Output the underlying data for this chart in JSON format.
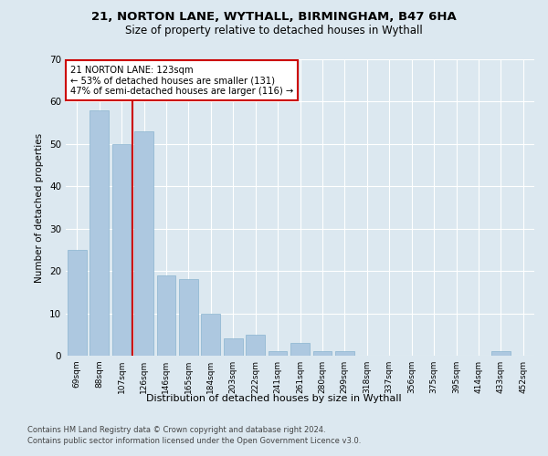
{
  "title1": "21, NORTON LANE, WYTHALL, BIRMINGHAM, B47 6HA",
  "title2": "Size of property relative to detached houses in Wythall",
  "xlabel": "Distribution of detached houses by size in Wythall",
  "ylabel": "Number of detached properties",
  "categories": [
    "69sqm",
    "88sqm",
    "107sqm",
    "126sqm",
    "146sqm",
    "165sqm",
    "184sqm",
    "203sqm",
    "222sqm",
    "241sqm",
    "261sqm",
    "280sqm",
    "299sqm",
    "318sqm",
    "337sqm",
    "356sqm",
    "375sqm",
    "395sqm",
    "414sqm",
    "433sqm",
    "452sqm"
  ],
  "values": [
    25,
    58,
    50,
    53,
    19,
    18,
    10,
    4,
    5,
    1,
    3,
    1,
    1,
    0,
    0,
    0,
    0,
    0,
    0,
    1,
    0
  ],
  "bar_color": "#adc8e0",
  "bar_edge_color": "#8ab4d0",
  "vline_x": 2.5,
  "vline_color": "#cc0000",
  "annotation_box_text": "21 NORTON LANE: 123sqm\n← 53% of detached houses are smaller (131)\n47% of semi-detached houses are larger (116) →",
  "annotation_box_color": "#ffffff",
  "annotation_box_edge_color": "#cc0000",
  "ylim": [
    0,
    70
  ],
  "yticks": [
    0,
    10,
    20,
    30,
    40,
    50,
    60,
    70
  ],
  "footer1": "Contains HM Land Registry data © Crown copyright and database right 2024.",
  "footer2": "Contains public sector information licensed under the Open Government Licence v3.0.",
  "background_color": "#dce8f0",
  "plot_background_color": "#dce8f0",
  "grid_color": "#ffffff"
}
